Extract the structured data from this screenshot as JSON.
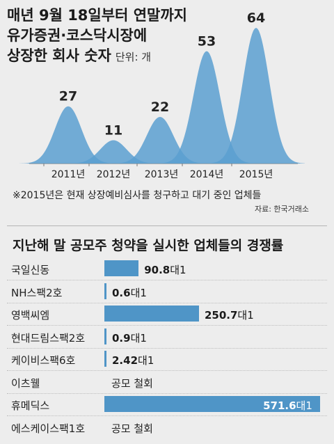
{
  "header": {
    "title_lines": [
      "매년 9월 18일부터 연말까지",
      "유가증권·코스닥시장에",
      "상장한 회사 숫자"
    ],
    "unit": "단위: 개"
  },
  "note": "※2015년은 현재 상장예비심사를 청구하고 대기 중인 업체들",
  "source": "자료: 한국거래소",
  "section2_title": "지난해 말 공모주 청약을 실시한 업체들의 경쟁률",
  "chart_data": [
    {
      "type": "area",
      "title": "매년 9월 18일부터 연말까지 유가증권·코스닥시장에 상장한 회사 숫자",
      "ylabel": "단위: 개",
      "categories": [
        "2011년",
        "2012년",
        "2013년",
        "2014년",
        "2015년"
      ],
      "values": [
        27,
        11,
        22,
        53,
        64
      ],
      "data_labels": [
        "27",
        "11",
        "22",
        "53",
        "64"
      ],
      "ylim": [
        0,
        64
      ],
      "grid": false,
      "color": "#5b9fd0"
    },
    {
      "type": "bar",
      "orientation": "horizontal",
      "title": "지난해 말 공모주 청약을 실시한 업체들의 경쟁률",
      "unit": "대1",
      "color": "#4f95c7",
      "max": 571.6,
      "rows": [
        {
          "name": "국일신동",
          "value": 90.8,
          "label": "90.8"
        },
        {
          "name": "NH스팩2호",
          "value": 0.6,
          "label": "0.6"
        },
        {
          "name": "영백씨엠",
          "value": 250.7,
          "label": "250.7"
        },
        {
          "name": "현대드림스팩2호",
          "value": 0.9,
          "label": "0.9"
        },
        {
          "name": "케이비스팩6호",
          "value": 2.42,
          "label": "2.42"
        },
        {
          "name": "이츠웰",
          "value": null,
          "label": "",
          "note": "공모 철회"
        },
        {
          "name": "휴메딕스",
          "value": 571.6,
          "label": "571.6"
        },
        {
          "name": "에스케이스팩1호",
          "value": null,
          "label": "",
          "note": "공모 철회"
        }
      ]
    }
  ]
}
